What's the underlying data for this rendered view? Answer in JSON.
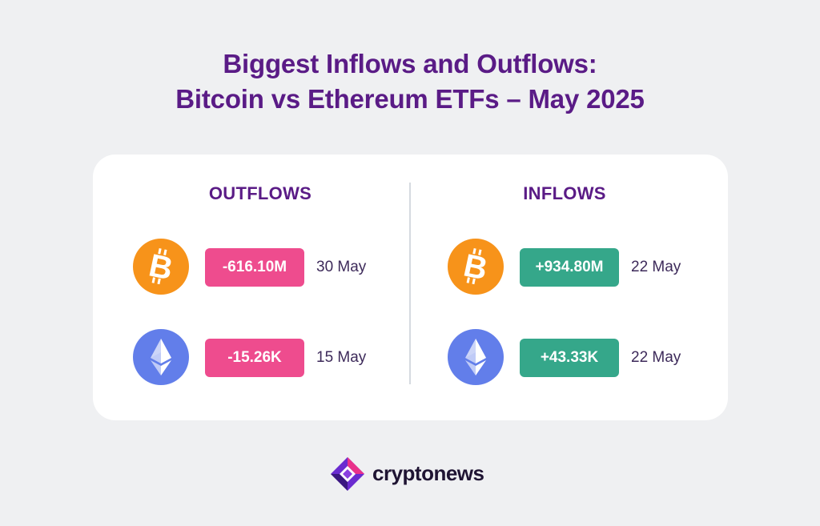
{
  "title": {
    "line1": "Biggest Inflows and Outflows:",
    "line2": "Bitcoin vs Ethereum ETFs – May 2025"
  },
  "outflows": {
    "heading": "OUTFLOWS",
    "rows": [
      {
        "coin_icon": "bitcoin-icon",
        "amount": "-616.10M",
        "date": "30 May"
      },
      {
        "coin_icon": "ethereum-icon",
        "amount": "-15.26K",
        "date": "15 May"
      }
    ]
  },
  "inflows": {
    "heading": "INFLOWS",
    "rows": [
      {
        "coin_icon": "bitcoin-icon",
        "amount": "+934.80M",
        "date": "22 May"
      },
      {
        "coin_icon": "ethereum-icon",
        "amount": "+43.33K",
        "date": "22 May"
      }
    ]
  },
  "brand": {
    "name": "cryptonews"
  },
  "colors": {
    "title": "#5a1b86",
    "outflow_pill": "#ee4c8e",
    "inflow_pill": "#35a78a",
    "bitcoin": "#f7931a",
    "ethereum": "#627eea",
    "background": "#eff0f2"
  }
}
